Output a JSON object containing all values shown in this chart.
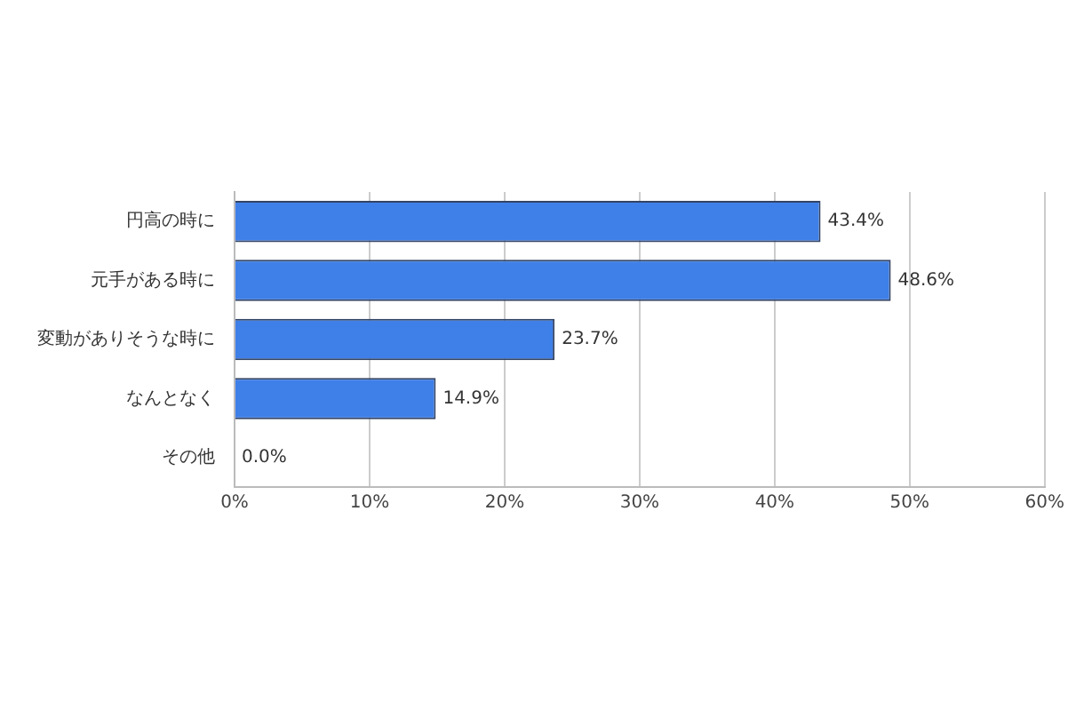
{
  "chart_data": {
    "type": "bar",
    "orientation": "horizontal",
    "categories": [
      "円高の時に",
      "元手がある時に",
      "変動がありそうな時に",
      "なんとなく",
      "その他"
    ],
    "values": [
      43.4,
      48.6,
      23.7,
      14.9,
      0.0
    ],
    "value_labels": [
      "43.4%",
      "48.6%",
      "23.7%",
      "14.9%",
      "0.0%"
    ],
    "color": "#3f7fe8",
    "xlim": [
      0,
      60
    ],
    "xticks": [
      {
        "value": 0,
        "label": "0%"
      },
      {
        "value": 10,
        "label": "10%"
      },
      {
        "value": 20,
        "label": "20%"
      },
      {
        "value": 30,
        "label": "30%"
      },
      {
        "value": 40,
        "label": "40%"
      },
      {
        "value": 50,
        "label": "50%"
      },
      {
        "value": 60,
        "label": "60%"
      }
    ],
    "grid": "x",
    "legend": false
  }
}
